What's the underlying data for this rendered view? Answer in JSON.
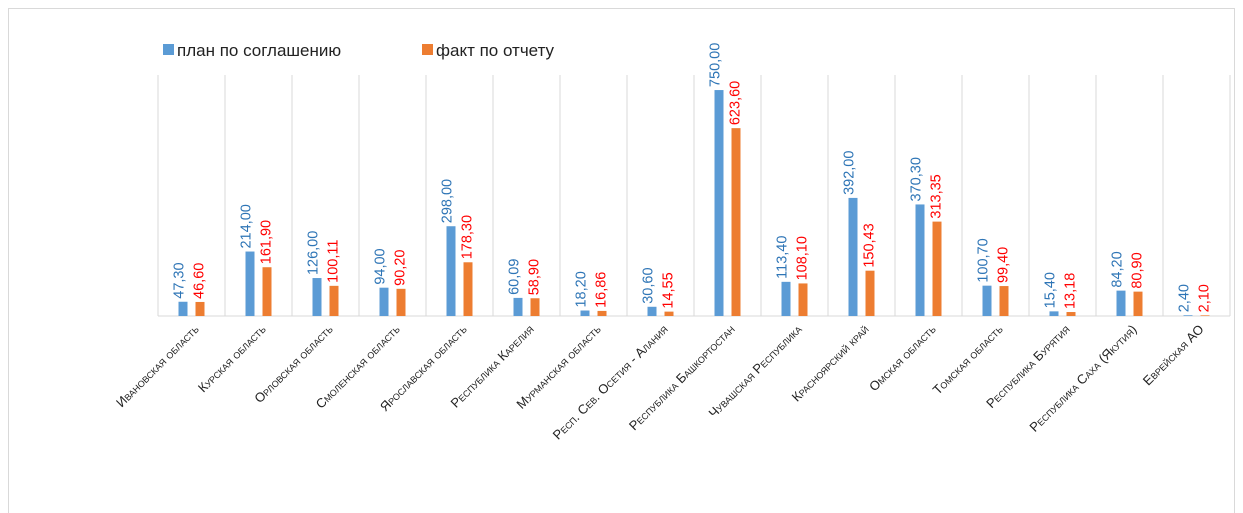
{
  "chart_data": {
    "type": "bar",
    "categories": [
      "Ивановская область",
      "Курская область",
      "Орловская область",
      "Смоленская область",
      "Ярославская область",
      "Республика Карелия",
      "Мурманская область",
      "Респ. Сев. Осетия - Алания",
      "Республика Башкортостан",
      "Чувашская Республика",
      "Красноярский край",
      "Омская область",
      "Томская область",
      "Республика Бурятия",
      "Республика Саха (Якутия)",
      "Еврейская АО"
    ],
    "series": [
      {
        "name": "план по соглашению",
        "color": "#5b9bd5",
        "label_color": "#2e75b6",
        "values": [
          47.3,
          214,
          126,
          94,
          298,
          60.09,
          18.2,
          30.6,
          750,
          113.4,
          392,
          370.3,
          100.7,
          15.4,
          84.2,
          2.4
        ],
        "value_labels": [
          "47,30",
          "214,00",
          "126,00",
          "94,00",
          "298,00",
          "60,09",
          "18,20",
          "30,60",
          "750,00",
          "113,40",
          "392,00",
          "370,30",
          "100,70",
          "15,40",
          "84,20",
          "2,40"
        ]
      },
      {
        "name": "факт по отчету",
        "color": "#ed7d31",
        "label_color": "#ff0000",
        "values": [
          46.6,
          161.9,
          100.11,
          90.2,
          178.3,
          58.9,
          16.86,
          14.55,
          623.6,
          108.1,
          150.43,
          313.35,
          99.4,
          13.18,
          80.9,
          2.1
        ],
        "value_labels": [
          "46,60",
          "161,90",
          "100,11",
          "90,20",
          "178,30",
          "58,90",
          "16,86",
          "14,55",
          "623,60",
          "108,10",
          "150,43",
          "313,35",
          "99,40",
          "13,18",
          "80,90",
          "2,10"
        ]
      }
    ],
    "ylim": [
      0,
      800
    ],
    "grid": true,
    "legend": "top-left"
  }
}
